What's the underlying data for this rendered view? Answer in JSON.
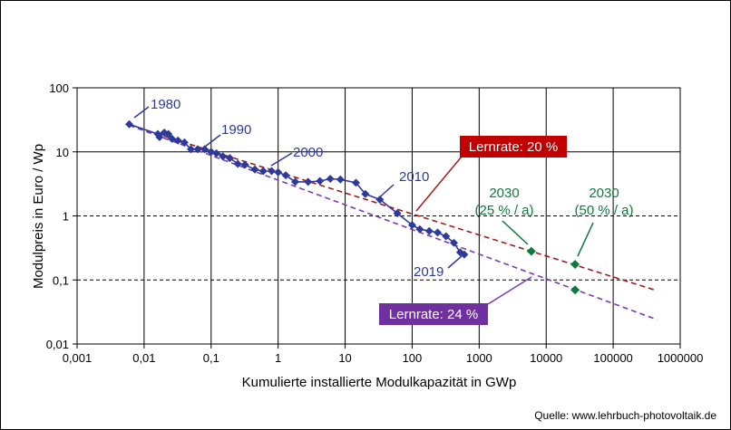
{
  "chart_data": {
    "type": "scatter",
    "xlabel": "Kumulierte installierte Modulkapazität in GWp",
    "ylabel": "Modulpreis in Euro / Wp",
    "xscale": "log",
    "yscale": "log",
    "xlim": [
      0.001,
      1000000
    ],
    "ylim": [
      0.01,
      100
    ],
    "grid": true,
    "x_tick_labels": [
      "0,001",
      "0,01",
      "0,1",
      "1",
      "10",
      "100",
      "1000",
      "10000",
      "100000",
      "1000000"
    ],
    "y_tick_labels": [
      "100",
      "10",
      "1",
      "0,1",
      "0,01"
    ],
    "colors": {
      "history": "#2E3A9A",
      "forecast": "#0F7A3C",
      "lernrate20": "#A11A1A",
      "lernrate24": "#7A3BB5",
      "box20": "#C00000",
      "box24": "#7030A0"
    },
    "series": [
      {
        "role": "history",
        "x": [
          0.006,
          0.016,
          0.017,
          0.02,
          0.023,
          0.026,
          0.032,
          0.04,
          0.05,
          0.063,
          0.08,
          0.1,
          0.12,
          0.15,
          0.19,
          0.25,
          0.32,
          0.45,
          0.6,
          0.8,
          1.0,
          1.3,
          1.8,
          2.8,
          4.2,
          6.0,
          8.5,
          14.5,
          20,
          33,
          60,
          100,
          130,
          180,
          240,
          320,
          420,
          520,
          600
        ],
        "y": [
          27,
          19,
          17,
          20,
          19,
          16,
          15,
          14,
          11,
          11,
          11,
          10,
          9.5,
          8.5,
          8,
          6.5,
          6.3,
          5.3,
          5.0,
          5.0,
          4.8,
          4.3,
          3.4,
          3.4,
          3.5,
          3.8,
          3.7,
          3.3,
          2.2,
          1.8,
          1.1,
          0.72,
          0.62,
          0.58,
          0.55,
          0.48,
          0.38,
          0.27,
          0.25
        ]
      },
      {
        "role": "forecast",
        "x": [
          6000,
          27000,
          27000
        ],
        "y": [
          0.28,
          0.175,
          0.07
        ]
      },
      {
        "role": "lernrate20",
        "x": [
          0.006,
          450000
        ],
        "y": [
          26,
          0.068
        ]
      },
      {
        "role": "lernrate24",
        "x": [
          0.006,
          450000
        ],
        "y": [
          26,
          0.024
        ]
      }
    ],
    "annotations": {
      "y1980": "1980",
      "y1990": "1990",
      "y2000": "2000",
      "y2010": "2010",
      "y2019": "2019",
      "f1_year": "2030",
      "f1_rate": "(25 % / a)",
      "f2_year": "2030",
      "f2_rate": "(50 % / a)",
      "lernrate20": "Lernrate: 20 %",
      "lernrate24": "Lernrate: 24 %"
    }
  },
  "footer": {
    "source": "Quelle: www.lehrbuch-photovoltaik.de"
  }
}
